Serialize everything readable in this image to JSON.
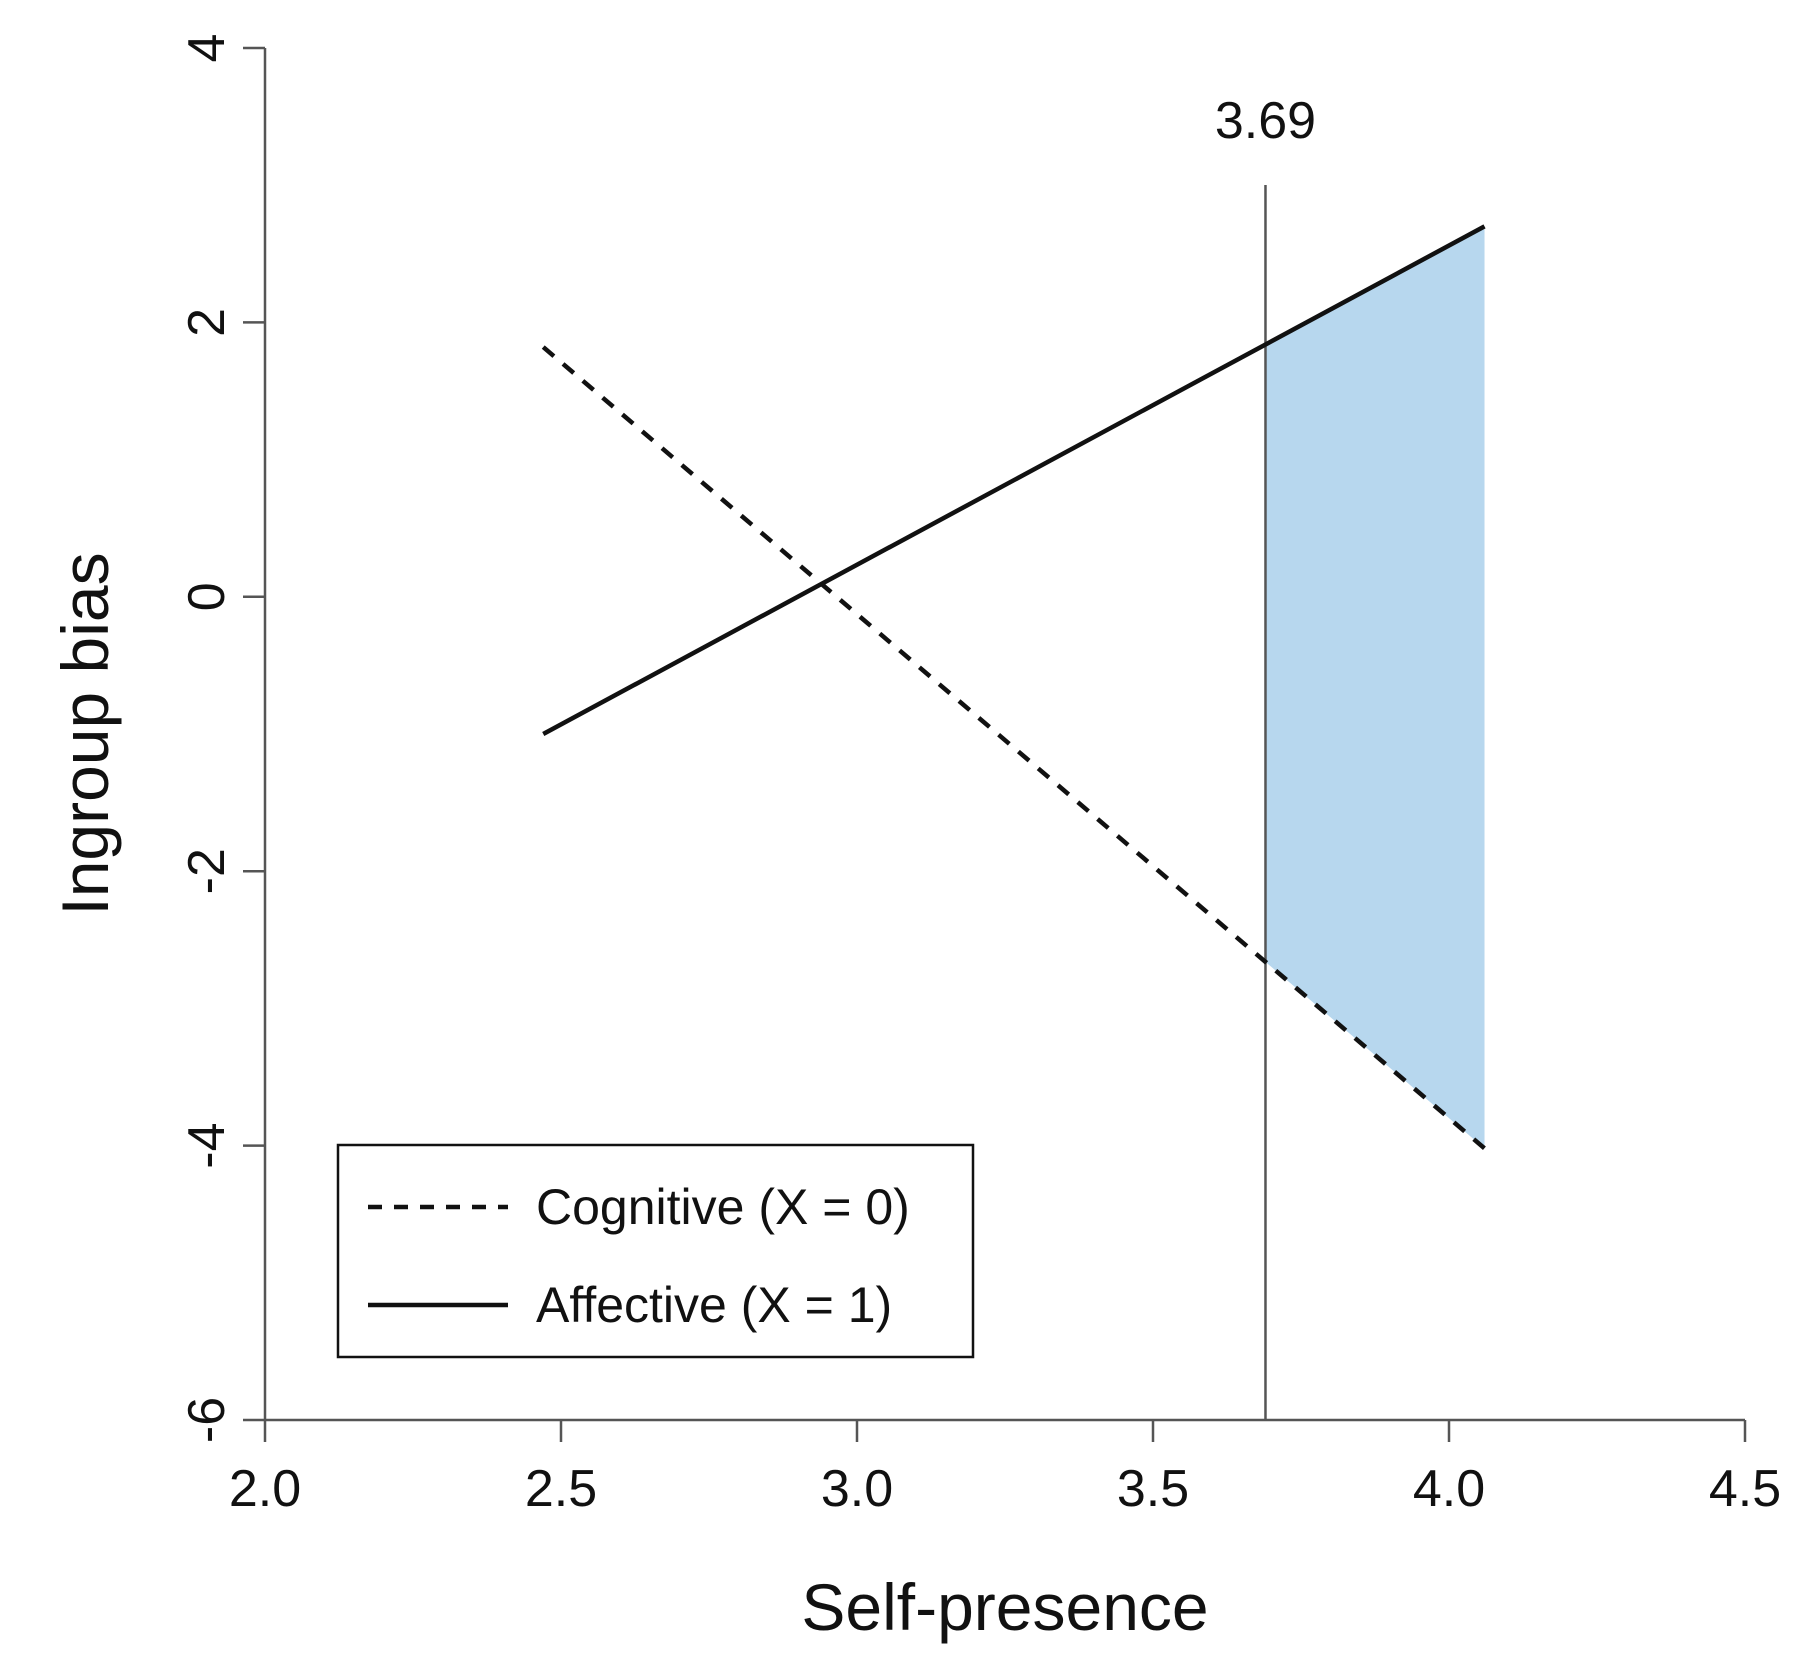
{
  "chart_data": {
    "type": "line",
    "title": "",
    "xlabel": "Self-presence",
    "ylabel": "Ingroup bias",
    "xlim": [
      2.0,
      4.5
    ],
    "ylim": [
      -6,
      4
    ],
    "x_ticks": [
      2.0,
      2.5,
      3.0,
      3.5,
      4.0,
      4.5
    ],
    "x_tick_labels": [
      "2.0",
      "2.5",
      "3.0",
      "3.5",
      "4.0",
      "4.5"
    ],
    "y_ticks": [
      -6,
      -4,
      -2,
      0,
      2,
      4
    ],
    "y_tick_labels": [
      "-6",
      "-4",
      "-2",
      "0",
      "2",
      "4"
    ],
    "grid": false,
    "legend_position": "bottom-left",
    "series": [
      {
        "name": "Cognitive (X = 0)",
        "style": "dashed",
        "color": "#111111",
        "x": [
          2.47,
          4.06
        ],
        "y": [
          1.82,
          -4.02
        ]
      },
      {
        "name": "Affective (X = 1)",
        "style": "solid",
        "color": "#111111",
        "x": [
          2.47,
          4.06
        ],
        "y": [
          -1.0,
          2.7
        ]
      }
    ],
    "annotations": [
      {
        "type": "vline",
        "x": 3.69,
        "label": "3.69",
        "color": "#555555"
      },
      {
        "type": "region_of_significance",
        "x_from": 3.69,
        "x_to": 4.06,
        "color": "#b7d7ee"
      }
    ]
  }
}
